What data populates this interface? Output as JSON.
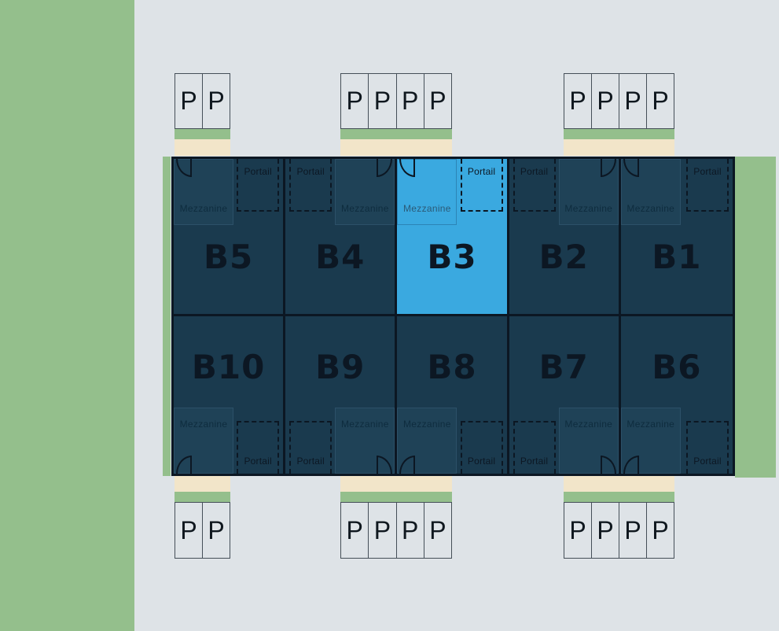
{
  "labels": {
    "mezzanine": "Mezzanine",
    "portail": "Portail",
    "parking_spot": "P"
  },
  "colors": {
    "background": "#dee3e7",
    "grass_green": "#94bf8c",
    "pavement_beige": "#f2e5c9",
    "unit_navy": "#1a3a4e",
    "selected_unit_blue": "#3aa9e0",
    "line_ink": "#0c1723"
  },
  "parking": {
    "top": [
      [
        "P",
        "P"
      ],
      [
        "P",
        "P",
        "P",
        "P"
      ],
      [
        "P",
        "P",
        "P",
        "P"
      ]
    ],
    "bottom": [
      [
        "P",
        "P"
      ],
      [
        "P",
        "P",
        "P",
        "P"
      ],
      [
        "P",
        "P",
        "P",
        "P"
      ]
    ]
  },
  "building": {
    "rows": [
      {
        "units": [
          {
            "id": "B5",
            "label": "B5",
            "mezzanine_side": "left",
            "selected": false
          },
          {
            "id": "B4",
            "label": "B4",
            "mezzanine_side": "right",
            "selected": false
          },
          {
            "id": "B3",
            "label": "B3",
            "mezzanine_side": "left",
            "selected": true
          },
          {
            "id": "B2",
            "label": "B2",
            "mezzanine_side": "right",
            "selected": false
          },
          {
            "id": "B1",
            "label": "B1",
            "mezzanine_side": "left",
            "selected": false
          }
        ]
      },
      {
        "units": [
          {
            "id": "B10",
            "label": "B10",
            "mezzanine_side": "left",
            "selected": false
          },
          {
            "id": "B9",
            "label": "B9",
            "mezzanine_side": "right",
            "selected": false
          },
          {
            "id": "B8",
            "label": "B8",
            "mezzanine_side": "left",
            "selected": false
          },
          {
            "id": "B7",
            "label": "B7",
            "mezzanine_side": "right",
            "selected": false
          },
          {
            "id": "B6",
            "label": "B6",
            "mezzanine_side": "left",
            "selected": false
          }
        ]
      }
    ]
  }
}
